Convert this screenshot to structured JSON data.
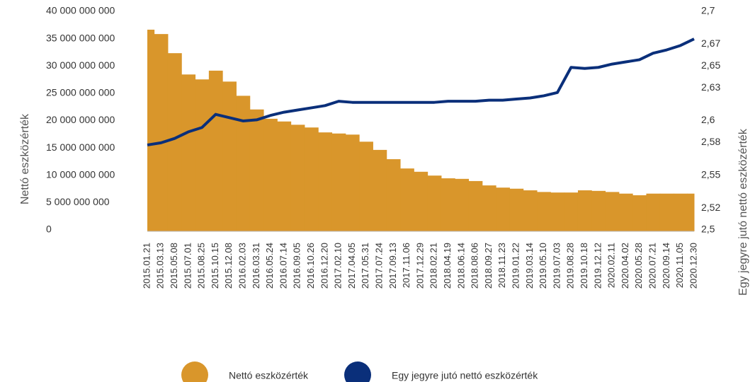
{
  "chart_data": {
    "type": "bar-line",
    "y_label": "Nettó eszközérték",
    "y2_label": "Egy jegyre jutó nettó eszközérték",
    "categories": [
      "2015.01.21",
      "2015.03.13",
      "2015.05.08",
      "2015.07.01",
      "2015.08.25",
      "2015.10.15",
      "2015.12.08",
      "2016.02.03",
      "2016.03.31",
      "2016.05.24",
      "2016.07.14",
      "2016.09.05",
      "2016.10.26",
      "2016.12.20",
      "2017.02.10",
      "2017.04.05",
      "2017.05.31",
      "2017.07.24",
      "2017.09.13",
      "2017.11.06",
      "2017.12.29",
      "2018.02.21",
      "2018.04.19",
      "2018.06.14",
      "2018.08.06",
      "2018.09.27",
      "2018.11.23",
      "2019.01.22",
      "2019.03.14",
      "2019.05.10",
      "2019.07.03",
      "2019.08.28",
      "2019.10.18",
      "2019.12.12",
      "2020.02.11",
      "2020.04.02",
      "2020.05.28",
      "2020.07.21",
      "2020.09.14",
      "2020.11.05",
      "2020.12.30"
    ],
    "series": [
      {
        "name": "Nettó eszközérték",
        "color": "#d9962b",
        "type": "bar",
        "values": [
          36900000000,
          36100000000,
          32600000000,
          28700000000,
          27800000000,
          29400000000,
          27400000000,
          24800000000,
          22300000000,
          20600000000,
          20100000000,
          19500000000,
          19000000000,
          18100000000,
          17900000000,
          17700000000,
          16400000000,
          14900000000,
          13200000000,
          11500000000,
          10900000000,
          10200000000,
          9700000000,
          9600000000,
          9200000000,
          8400000000,
          8000000000,
          7800000000,
          7500000000,
          7200000000,
          7100000000,
          7100000000,
          7500000000,
          7400000000,
          7200000000,
          6900000000,
          6600000000,
          6900000000,
          6900000000,
          6900000000,
          6900000000
        ]
      },
      {
        "name": "Egy jegyre jutó nettó eszközérték",
        "color": "#0a2f7a",
        "type": "line",
        "axis": "y2",
        "values": [
          2.579,
          2.581,
          2.585,
          2.591,
          2.595,
          2.607,
          2.604,
          2.601,
          2.602,
          2.606,
          2.609,
          2.611,
          2.613,
          2.615,
          2.619,
          2.618,
          2.618,
          2.618,
          2.618,
          2.618,
          2.618,
          2.618,
          2.619,
          2.619,
          2.619,
          2.62,
          2.62,
          2.621,
          2.622,
          2.624,
          2.627,
          2.65,
          2.649,
          2.65,
          2.653,
          2.655,
          2.657,
          2.663,
          2.666,
          2.67,
          2.676
        ]
      }
    ],
    "ylim": [
      0,
      40000000000
    ],
    "yticks": [
      {
        "value": 0,
        "label": "0"
      },
      {
        "value": 5000000000,
        "label": "5 000 000 000"
      },
      {
        "value": 10000000000,
        "label": "10 000 000 000"
      },
      {
        "value": 15000000000,
        "label": "15 000 000 000"
      },
      {
        "value": 20000000000,
        "label": "20 000 000 000"
      },
      {
        "value": 25000000000,
        "label": "25 000 000 000"
      },
      {
        "value": 30000000000,
        "label": "30 000 000 000"
      },
      {
        "value": 35000000000,
        "label": "35 000 000 000"
      },
      {
        "value": 40000000000,
        "label": "40 000 000 000"
      }
    ],
    "y2lim": [
      2.5,
      2.7
    ],
    "y2ticks": [
      {
        "value": 2.5,
        "label": "2,5"
      },
      {
        "value": 2.52,
        "label": "2,52"
      },
      {
        "value": 2.55,
        "label": "2,55"
      },
      {
        "value": 2.58,
        "label": "2,58"
      },
      {
        "value": 2.6,
        "label": "2,6"
      },
      {
        "value": 2.63,
        "label": "2,63"
      },
      {
        "value": 2.65,
        "label": "2,65"
      },
      {
        "value": 2.67,
        "label": "2,67"
      },
      {
        "value": 2.7,
        "label": "2,7"
      }
    ],
    "legend": "bottom"
  }
}
